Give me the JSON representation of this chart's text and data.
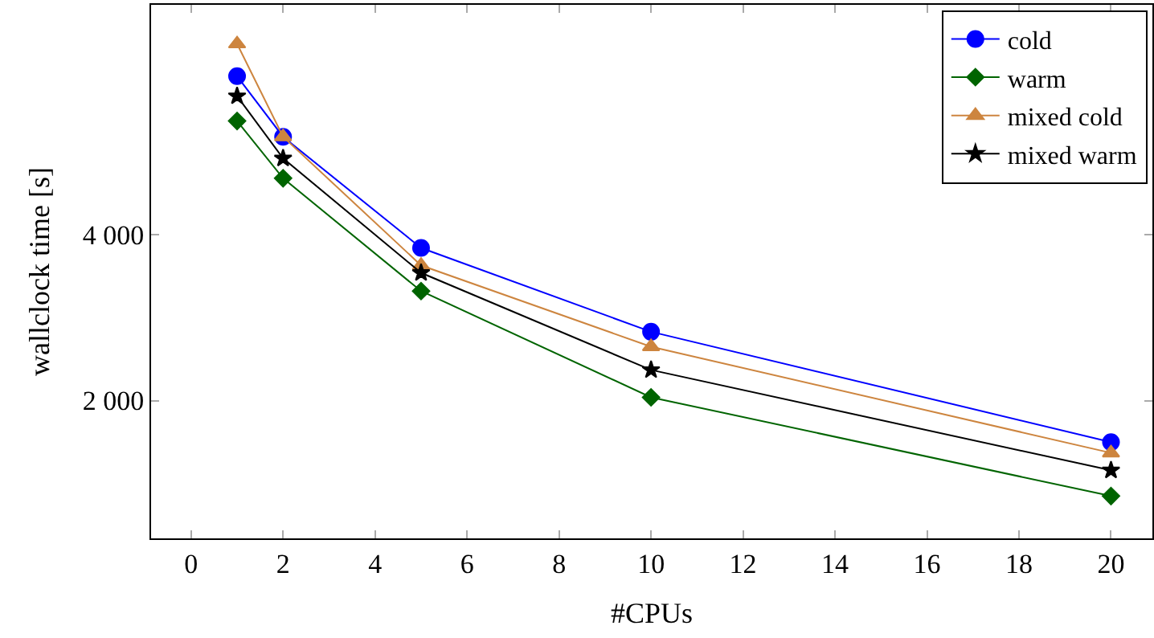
{
  "chart_data": {
    "type": "line",
    "xlabel": "#CPUs",
    "ylabel": "wallclock time [s]",
    "x": [
      1,
      2,
      5,
      10,
      20
    ],
    "series": [
      {
        "name": "cold",
        "color": "#0000ff",
        "marker": "circle",
        "values": [
          5910,
          5180,
          3840,
          2830,
          1500
        ]
      },
      {
        "name": "warm",
        "color": "#006400",
        "marker": "diamond",
        "values": [
          5370,
          4680,
          3320,
          2040,
          850
        ]
      },
      {
        "name": "mixed cold",
        "color": "#cd853f",
        "marker": "triangle",
        "values": [
          6300,
          5180,
          3630,
          2650,
          1370
        ]
      },
      {
        "name": "mixed warm",
        "color": "#000000",
        "marker": "star",
        "values": [
          5670,
          4920,
          3540,
          2370,
          1160
        ]
      }
    ],
    "xlim": [
      -0.87,
      20.9
    ],
    "ylim": [
      340,
      6770
    ],
    "xticks": [
      0,
      2,
      4,
      6,
      8,
      10,
      12,
      14,
      16,
      18,
      20
    ],
    "yticks": [
      {
        "value": 2000,
        "label": "2 000"
      },
      {
        "value": 4000,
        "label": "4 000"
      }
    ],
    "legend": "top right",
    "line_style": "solid"
  }
}
